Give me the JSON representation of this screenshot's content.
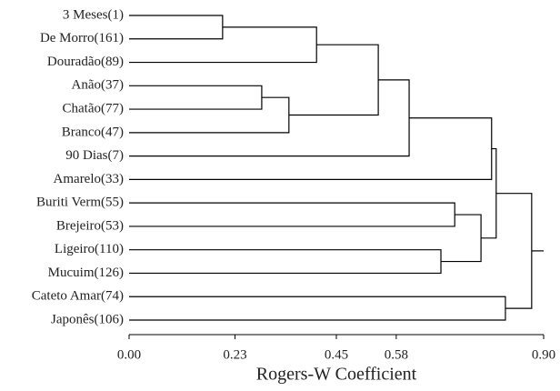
{
  "chart_data": {
    "type": "dendrogram",
    "leaves": [
      "3 Meses(1)",
      "De Morro(161)",
      "Douradão(89)",
      "Anão(37)",
      "Chatão(77)",
      "Branco(47)",
      "90 Dias(7)",
      "Amarelo(33)",
      "Buriti Verm(55)",
      "Brejeiro(53)",
      "Ligeiro(110)",
      "Mucuim(126)",
      "Cateto Amar(74)",
      "Japonês(106)"
    ],
    "merges": [
      [
        0,
        1,
        0.203
      ],
      [
        14,
        2,
        0.407
      ],
      [
        3,
        4,
        0.288
      ],
      [
        16,
        5,
        0.347
      ],
      [
        15,
        17,
        0.541
      ],
      [
        18,
        6,
        0.608
      ],
      [
        19,
        7,
        0.787
      ],
      [
        8,
        9,
        0.707
      ],
      [
        10,
        11,
        0.677
      ],
      [
        21,
        22,
        0.764
      ],
      [
        20,
        23,
        0.797
      ],
      [
        12,
        13,
        0.817
      ],
      [
        24,
        25,
        0.874
      ]
    ],
    "xlabel": "Rogers-W Coefficient",
    "xlim": [
      0,
      0.9
    ],
    "xticks": [
      {
        "value": 0,
        "label": "0.00"
      },
      0.23,
      0.45,
      0.58,
      {
        "value": 0.9,
        "label": "0.90"
      }
    ],
    "color": "#000000"
  }
}
